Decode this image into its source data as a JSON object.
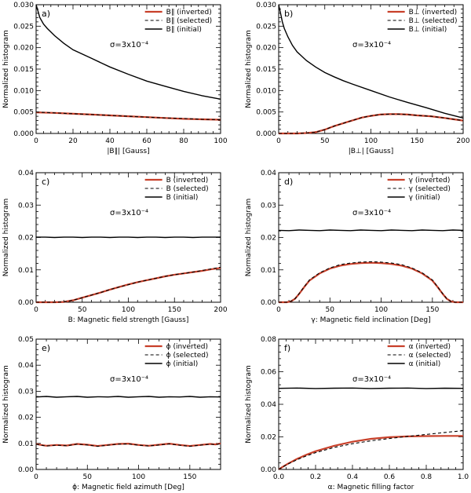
{
  "figure": {
    "series_colors": {
      "inverted": "#c8402a",
      "selected": "#000000",
      "initial": "#000000"
    }
  },
  "chart_data": [
    {
      "type": "line",
      "panel_label": "a)",
      "xlabel": "|B∥| [Gauss]",
      "ylabel": "Normalized histogram",
      "xlim": [
        0,
        100
      ],
      "ylim": [
        0,
        0.03
      ],
      "xticks": [
        0,
        20,
        40,
        60,
        80,
        100
      ],
      "xtick_labels": [
        "0",
        "20",
        "40",
        "60",
        "80",
        "100"
      ],
      "yticks": [
        0,
        0.005,
        0.01,
        0.015,
        0.02,
        0.025,
        0.03
      ],
      "ytick_labels": [
        "0.000",
        "0.005",
        "0.010",
        "0.015",
        "0.020",
        "0.025",
        "0.030"
      ],
      "annotation": "σ=3x10⁻⁴",
      "series": [
        {
          "name": "B∥ (inverted)",
          "style": "inverted",
          "x": [
            0,
            10,
            20,
            30,
            40,
            50,
            60,
            70,
            80,
            90,
            100
          ],
          "y": [
            0.0049,
            0.0048,
            0.0046,
            0.0044,
            0.0042,
            0.004,
            0.0038,
            0.0036,
            0.0034,
            0.0033,
            0.0032
          ]
        },
        {
          "name": "B∥ (selected)",
          "style": "selected",
          "x": [
            0,
            10,
            20,
            30,
            40,
            50,
            60,
            70,
            80,
            90,
            100
          ],
          "y": [
            0.005,
            0.0048,
            0.0046,
            0.0044,
            0.0042,
            0.004,
            0.0038,
            0.0036,
            0.0035,
            0.0033,
            0.0032
          ]
        },
        {
          "name": "B∥ (initial)",
          "style": "initial",
          "x": [
            0,
            1,
            2,
            4,
            6,
            10,
            15,
            20,
            30,
            40,
            50,
            60,
            70,
            80,
            90,
            100
          ],
          "y": [
            0.03,
            0.0285,
            0.027,
            0.0255,
            0.0245,
            0.0228,
            0.021,
            0.0195,
            0.0175,
            0.0155,
            0.0138,
            0.0122,
            0.011,
            0.0098,
            0.0088,
            0.008
          ]
        }
      ]
    },
    {
      "type": "line",
      "panel_label": "b)",
      "xlabel": "|B⊥| [Gauss]",
      "ylabel": "Normalized histogram",
      "xlim": [
        0,
        200
      ],
      "ylim": [
        0,
        0.03
      ],
      "xticks": [
        0,
        50,
        100,
        150,
        200
      ],
      "xtick_labels": [
        "0",
        "50",
        "100",
        "150",
        "200"
      ],
      "yticks": [
        0,
        0.005,
        0.01,
        0.015,
        0.02,
        0.025,
        0.03
      ],
      "ytick_labels": [
        "0.000",
        "0.005",
        "0.010",
        "0.015",
        "0.020",
        "0.025",
        "0.030"
      ],
      "annotation": "σ=3x10⁻⁴",
      "series": [
        {
          "name": "B⊥ (inverted)",
          "style": "inverted",
          "x": [
            0,
            20,
            30,
            40,
            50,
            60,
            75,
            90,
            100,
            110,
            120,
            130,
            140,
            150,
            165,
            180,
            190,
            200
          ],
          "y": [
            0,
            0,
            0.0001,
            0.0003,
            0.0009,
            0.0017,
            0.0027,
            0.0037,
            0.0041,
            0.0044,
            0.0045,
            0.0045,
            0.0044,
            0.0042,
            0.004,
            0.0036,
            0.0033,
            0.003
          ]
        },
        {
          "name": "B⊥ (selected)",
          "style": "selected",
          "x": [
            0,
            20,
            30,
            40,
            50,
            60,
            75,
            90,
            100,
            110,
            120,
            130,
            140,
            150,
            165,
            180,
            190,
            200
          ],
          "y": [
            0,
            0,
            0.0001,
            0.0003,
            0.0009,
            0.0017,
            0.0027,
            0.0037,
            0.0041,
            0.0044,
            0.0045,
            0.0045,
            0.0044,
            0.0042,
            0.004,
            0.0036,
            0.0033,
            0.003
          ]
        },
        {
          "name": "B⊥ (initial)",
          "style": "initial",
          "x": [
            0,
            2,
            4,
            6,
            10,
            15,
            20,
            30,
            40,
            50,
            60,
            70,
            80,
            100,
            120,
            140,
            160,
            180,
            200
          ],
          "y": [
            0.03,
            0.028,
            0.026,
            0.0245,
            0.0225,
            0.0205,
            0.019,
            0.017,
            0.0155,
            0.0142,
            0.0132,
            0.0123,
            0.0115,
            0.01,
            0.0085,
            0.0072,
            0.006,
            0.0047,
            0.0036
          ]
        }
      ]
    },
    {
      "type": "line",
      "panel_label": "c)",
      "xlabel": "B: Magnetic field strength [Gauss]",
      "ylabel": "Normalized histogram",
      "xlim": [
        0,
        200
      ],
      "ylim": [
        0,
        0.04
      ],
      "xticks": [
        0,
        50,
        100,
        150,
        200
      ],
      "xtick_labels": [
        "0",
        "50",
        "100",
        "150",
        "200"
      ],
      "yticks": [
        0,
        0.01,
        0.02,
        0.03,
        0.04
      ],
      "ytick_labels": [
        "0.00",
        "0.01",
        "0.02",
        "0.03",
        "0.04"
      ],
      "annotation": "σ=3x10⁻⁴",
      "series": [
        {
          "name": "B (inverted)",
          "style": "inverted",
          "x": [
            0,
            20,
            30,
            40,
            50,
            60,
            70,
            80,
            90,
            100,
            110,
            120,
            130,
            140,
            150,
            160,
            170,
            180,
            190,
            200
          ],
          "y": [
            0,
            0,
            0.0001,
            0.0006,
            0.0014,
            0.0022,
            0.003,
            0.0039,
            0.0047,
            0.0055,
            0.0062,
            0.0068,
            0.0074,
            0.008,
            0.0085,
            0.0089,
            0.0093,
            0.0097,
            0.0102,
            0.0106
          ]
        },
        {
          "name": "B (selected)",
          "style": "selected",
          "x": [
            0,
            20,
            30,
            40,
            50,
            60,
            70,
            80,
            90,
            100,
            110,
            120,
            130,
            140,
            150,
            160,
            170,
            180,
            190,
            200
          ],
          "y": [
            0,
            0,
            0.0001,
            0.0006,
            0.0014,
            0.0022,
            0.003,
            0.0039,
            0.0047,
            0.0054,
            0.0062,
            0.0068,
            0.0074,
            0.008,
            0.0085,
            0.0089,
            0.0093,
            0.0098,
            0.0103,
            0.0108
          ]
        },
        {
          "name": "B (initial)",
          "style": "initial",
          "x": [
            0,
            10,
            20,
            30,
            40,
            50,
            60,
            70,
            80,
            90,
            100,
            110,
            120,
            130,
            140,
            150,
            160,
            170,
            180,
            190,
            200
          ],
          "y": [
            0.0201,
            0.0201,
            0.02,
            0.0201,
            0.0201,
            0.02,
            0.0201,
            0.0201,
            0.02,
            0.0201,
            0.0201,
            0.02,
            0.0201,
            0.0201,
            0.02,
            0.0201,
            0.0201,
            0.02,
            0.0201,
            0.0201,
            0.0201
          ]
        }
      ]
    },
    {
      "type": "line",
      "panel_label": "d)",
      "xlabel": "γ: Magnetic field inclination [Deg]",
      "ylabel": "Normalized histogram",
      "xlim": [
        0,
        180
      ],
      "ylim": [
        0,
        0.04
      ],
      "xticks": [
        0,
        50,
        100,
        150
      ],
      "xtick_labels": [
        "0",
        "50",
        "100",
        "150"
      ],
      "yticks": [
        0,
        0.01,
        0.02,
        0.03,
        0.04
      ],
      "ytick_labels": [
        "0.00",
        "0.01",
        "0.02",
        "0.03",
        "0.04"
      ],
      "annotation": "σ=3x10⁻⁴",
      "series": [
        {
          "name": "γ (inverted)",
          "style": "inverted",
          "x": [
            0,
            8,
            12,
            16,
            20,
            25,
            30,
            40,
            50,
            60,
            70,
            80,
            90,
            100,
            110,
            120,
            130,
            140,
            150,
            155,
            160,
            164,
            168,
            172,
            180
          ],
          "y": [
            0,
            0,
            0.0003,
            0.0011,
            0.0026,
            0.0047,
            0.0067,
            0.0089,
            0.0104,
            0.0113,
            0.0118,
            0.0121,
            0.0122,
            0.0121,
            0.0118,
            0.0113,
            0.0104,
            0.0089,
            0.0067,
            0.0047,
            0.0026,
            0.0011,
            0.0003,
            0,
            0
          ]
        },
        {
          "name": "γ (selected)",
          "style": "selected",
          "x": [
            0,
            8,
            12,
            16,
            20,
            25,
            30,
            40,
            50,
            60,
            70,
            80,
            90,
            100,
            110,
            120,
            130,
            140,
            150,
            155,
            160,
            164,
            168,
            172,
            180
          ],
          "y": [
            0,
            0,
            0.0003,
            0.0011,
            0.0027,
            0.0048,
            0.0069,
            0.0091,
            0.0106,
            0.0116,
            0.0121,
            0.0124,
            0.0125,
            0.0124,
            0.0121,
            0.0116,
            0.0106,
            0.0091,
            0.0069,
            0.0048,
            0.0027,
            0.0011,
            0.0003,
            0,
            0
          ]
        },
        {
          "name": "γ (initial)",
          "style": "initial",
          "x": [
            0,
            10,
            20,
            30,
            40,
            50,
            60,
            70,
            80,
            90,
            100,
            110,
            120,
            130,
            140,
            150,
            160,
            170,
            180
          ],
          "y": [
            0.0222,
            0.0221,
            0.0223,
            0.0222,
            0.0221,
            0.0223,
            0.0222,
            0.0221,
            0.0223,
            0.0222,
            0.0221,
            0.0223,
            0.0222,
            0.0221,
            0.0223,
            0.0222,
            0.0221,
            0.0223,
            0.0222
          ]
        }
      ]
    },
    {
      "type": "line",
      "panel_label": "e)",
      "xlabel": "ϕ: Magnetic field azimuth [Deg]",
      "ylabel": "Normalized histogram",
      "xlim": [
        0,
        180
      ],
      "ylim": [
        0,
        0.05
      ],
      "xticks": [
        0,
        50,
        100,
        150
      ],
      "xtick_labels": [
        "0",
        "50",
        "100",
        "150"
      ],
      "yticks": [
        0,
        0.01,
        0.02,
        0.03,
        0.04,
        0.05
      ],
      "ytick_labels": [
        "0.00",
        "0.01",
        "0.02",
        "0.03",
        "0.04",
        "0.05"
      ],
      "annotation": "σ=3x10⁻⁴",
      "series": [
        {
          "name": "ϕ (inverted)",
          "style": "inverted",
          "x": [
            0,
            5,
            10,
            20,
            30,
            40,
            50,
            60,
            70,
            80,
            90,
            100,
            110,
            120,
            130,
            140,
            150,
            160,
            170,
            175,
            180
          ],
          "y": [
            0.0098,
            0.0094,
            0.0091,
            0.0094,
            0.0092,
            0.0098,
            0.0095,
            0.009,
            0.0094,
            0.0098,
            0.0099,
            0.0094,
            0.0091,
            0.0095,
            0.0099,
            0.0094,
            0.009,
            0.0094,
            0.0098,
            0.0096,
            0.01
          ]
        },
        {
          "name": "ϕ (selected)",
          "style": "selected",
          "x": [
            0,
            5,
            10,
            20,
            30,
            40,
            50,
            60,
            70,
            80,
            90,
            100,
            110,
            120,
            130,
            140,
            150,
            160,
            170,
            175,
            180
          ],
          "y": [
            0.0097,
            0.0093,
            0.009,
            0.0093,
            0.0091,
            0.0097,
            0.0094,
            0.0089,
            0.0093,
            0.0097,
            0.0098,
            0.0093,
            0.009,
            0.0094,
            0.0098,
            0.0093,
            0.0089,
            0.0093,
            0.0097,
            0.0095,
            0.0099
          ]
        },
        {
          "name": "ϕ (initial)",
          "style": "initial",
          "x": [
            0,
            10,
            20,
            30,
            40,
            50,
            60,
            70,
            80,
            90,
            100,
            110,
            120,
            130,
            140,
            150,
            160,
            170,
            180
          ],
          "y": [
            0.0278,
            0.028,
            0.0277,
            0.0279,
            0.028,
            0.0277,
            0.0279,
            0.0278,
            0.028,
            0.0277,
            0.0279,
            0.028,
            0.0277,
            0.0279,
            0.0278,
            0.028,
            0.0277,
            0.0279,
            0.0278
          ]
        }
      ]
    },
    {
      "type": "line",
      "panel_label": "f)",
      "xlabel": "α: Magnetic filling factor",
      "ylabel": "Normalized histogram",
      "xlim": [
        0,
        1
      ],
      "ylim": [
        0,
        0.08
      ],
      "xticks": [
        0,
        0.2,
        0.4,
        0.6,
        0.8,
        1.0
      ],
      "xtick_labels": [
        "0.0",
        "0.2",
        "0.4",
        "0.6",
        "0.8",
        "1.0"
      ],
      "yticks": [
        0,
        0.02,
        0.04,
        0.06,
        0.08
      ],
      "ytick_labels": [
        "0.00",
        "0.02",
        "0.04",
        "0.06",
        "0.08"
      ],
      "annotation": "σ=3x10⁻⁴",
      "series": [
        {
          "name": "α (inverted)",
          "style": "inverted",
          "x": [
            0,
            0.02,
            0.05,
            0.1,
            0.15,
            0.2,
            0.3,
            0.4,
            0.5,
            0.6,
            0.7,
            0.8,
            0.9,
            1.0
          ],
          "y": [
            0,
            0.0015,
            0.0035,
            0.0065,
            0.009,
            0.0112,
            0.0145,
            0.017,
            0.0188,
            0.0198,
            0.0203,
            0.0205,
            0.0206,
            0.0206
          ]
        },
        {
          "name": "α (selected)",
          "style": "selected",
          "x": [
            0,
            0.02,
            0.05,
            0.1,
            0.15,
            0.2,
            0.3,
            0.4,
            0.5,
            0.6,
            0.7,
            0.8,
            0.9,
            1.0
          ],
          "y": [
            0,
            0.0014,
            0.0033,
            0.006,
            0.0083,
            0.0103,
            0.0135,
            0.0158,
            0.0176,
            0.019,
            0.0203,
            0.0215,
            0.0227,
            0.0238
          ]
        },
        {
          "name": "α (initial)",
          "style": "initial",
          "x": [
            0,
            0.1,
            0.2,
            0.3,
            0.4,
            0.5,
            0.6,
            0.7,
            0.8,
            0.9,
            1.0
          ],
          "y": [
            0.0498,
            0.05,
            0.0497,
            0.0499,
            0.05,
            0.0497,
            0.0499,
            0.05,
            0.0497,
            0.0499,
            0.0498
          ]
        }
      ]
    }
  ]
}
